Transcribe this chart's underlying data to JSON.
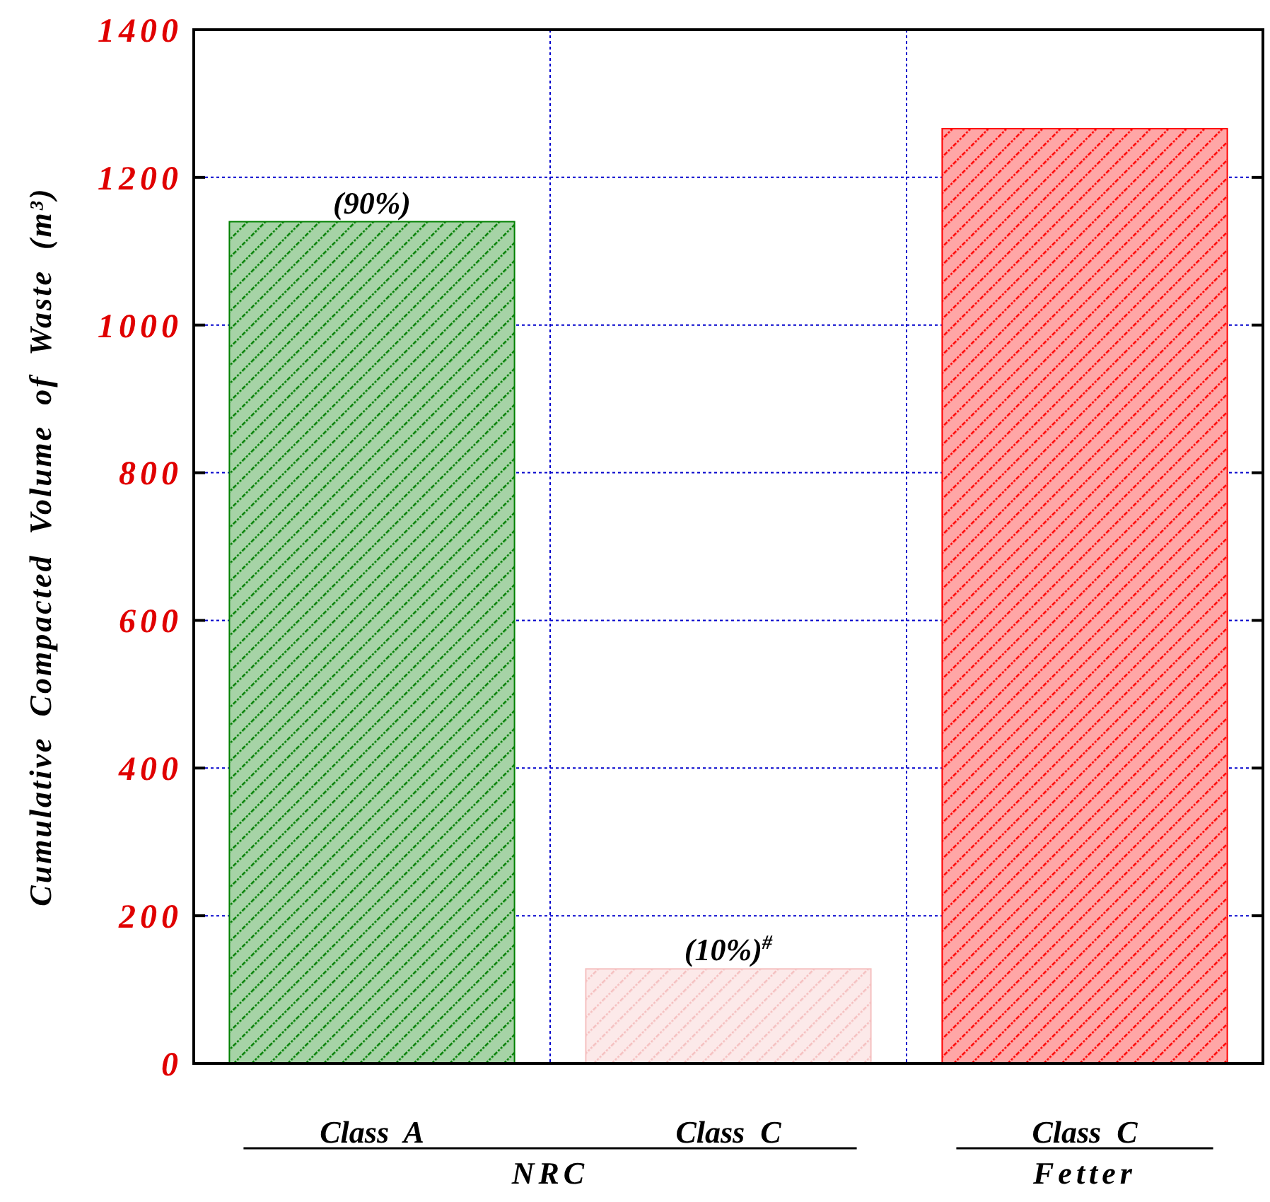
{
  "chart_data": {
    "type": "bar",
    "ylabel": "Cumulative Compacted Volume of Waste (m³)",
    "categories": [
      "Class  A",
      "Class  C",
      "Class  C"
    ],
    "values": [
      1140,
      128,
      1266
    ],
    "colors": [
      "#008000",
      "#f5c0c0",
      "#ff0000"
    ],
    "ylim": [
      0,
      1400
    ],
    "yticks": [
      0,
      200,
      400,
      600,
      800,
      1000,
      1200,
      1400
    ],
    "grid": true,
    "annotations": [
      "NRC",
      "Fetter",
      {
        "text": "(90%)",
        "x": "Class  A",
        "y": 1140
      },
      {
        "text": "(10%)$^{#}$",
        "x": "Class  C",
        "y": 128
      }
    ]
  }
}
